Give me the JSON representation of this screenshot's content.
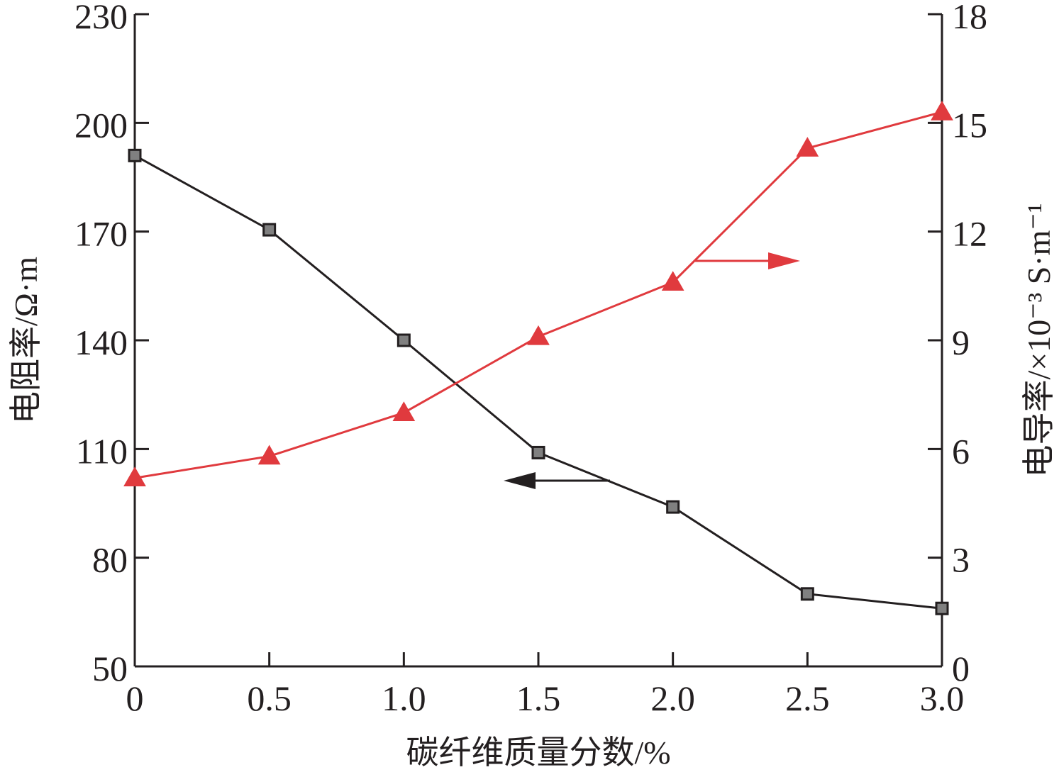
{
  "chart_data": {
    "type": "line",
    "xlabel": "碳纤维质量分数/%",
    "ylabel_left": "电阻率/Ω·m",
    "ylabel_right": "电导率/×10⁻³ S·m⁻¹",
    "x_ticks": [
      "0",
      "0.5",
      "1.0",
      "1.5",
      "2.0",
      "2.5",
      "3.0"
    ],
    "y_left_ticks": [
      "50",
      "80",
      "110",
      "140",
      "170",
      "200",
      "230"
    ],
    "y_right_ticks": [
      "0",
      "3",
      "6",
      "9",
      "12",
      "15",
      "18"
    ],
    "xlim": [
      0,
      3.0
    ],
    "ylim_left": [
      50,
      230
    ],
    "ylim_right": [
      0,
      18
    ],
    "grid": false,
    "series": [
      {
        "axis": "left",
        "marker": "square",
        "color": "#231f20",
        "marker_fill": "#808080",
        "x": [
          0,
          0.5,
          1.0,
          1.5,
          2.0,
          2.5,
          3.0
        ],
        "values": [
          191,
          170.5,
          140,
          109,
          94,
          70,
          66
        ]
      },
      {
        "axis": "right",
        "marker": "triangle",
        "color": "#e03a3e",
        "marker_fill": "#e03a3e",
        "x": [
          0,
          0.5,
          1.0,
          1.5,
          2.0,
          2.5,
          3.0
        ],
        "values": [
          5.2,
          5.8,
          7.0,
          9.1,
          10.6,
          14.3,
          15.3
        ]
      }
    ],
    "annotations": [
      {
        "type": "arrow",
        "direction": "left",
        "points_to_axis": "left",
        "color": "#231f20"
      },
      {
        "type": "arrow",
        "direction": "right",
        "points_to_axis": "right",
        "color": "#e03a3e"
      }
    ]
  }
}
